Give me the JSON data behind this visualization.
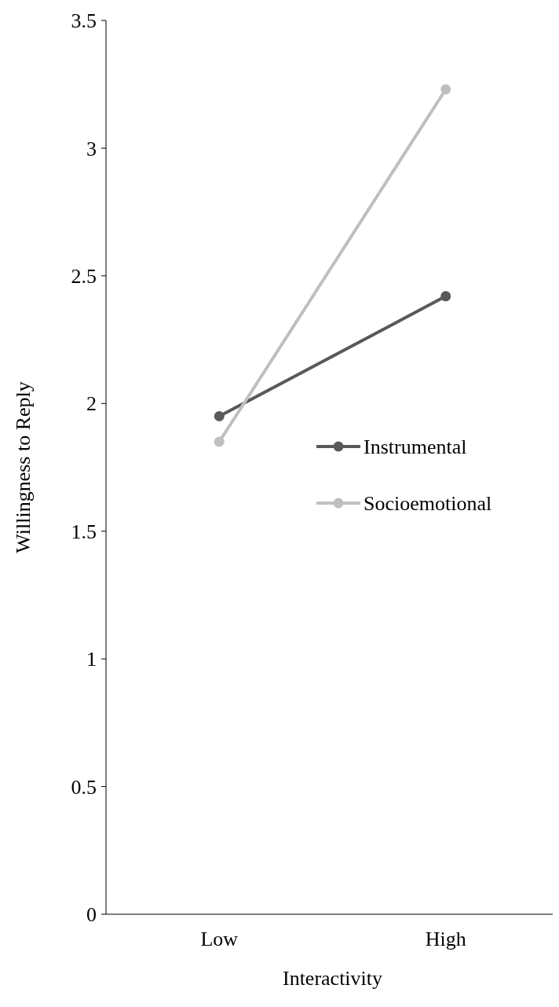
{
  "chart_data": {
    "type": "line",
    "xlabel": "Interactivity",
    "ylabel": "Willingness to Reply",
    "categories": [
      "Low",
      "High"
    ],
    "series": [
      {
        "name": "Instrumental",
        "color": "#595959",
        "values": [
          1.95,
          2.42
        ]
      },
      {
        "name": "Socioemotional",
        "color": "#bfbfbf",
        "values": [
          1.85,
          3.23
        ]
      }
    ],
    "ylim": [
      0,
      3.5
    ],
    "yticks": [
      0,
      0.5,
      1,
      1.5,
      2,
      2.5,
      3,
      3.5
    ],
    "grid": false,
    "legend": "right",
    "marker": "circle",
    "line_style": "solid"
  }
}
